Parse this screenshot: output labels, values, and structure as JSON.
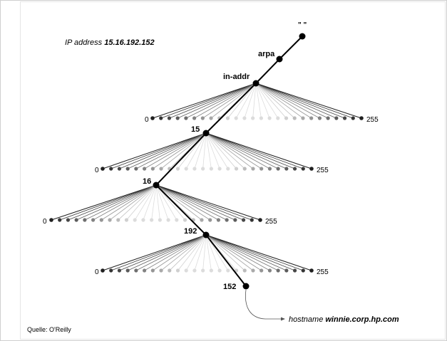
{
  "diagram": {
    "ip_caption": {
      "prefix": "IP address ",
      "value": "15.16.192.152"
    },
    "root_label": "\" \"",
    "nodes": {
      "arpa": "arpa",
      "in_addr": "in-addr",
      "n15": "15",
      "n16": "16",
      "n192": "192",
      "n152": "152"
    },
    "fan_min_label": "0",
    "fan_max_label": "255",
    "hostname": {
      "prefix": "hostname ",
      "value": "winnie.corp.hp.com"
    }
  },
  "credit": "Quelle: O'Reilly",
  "colors": {
    "ink": "#000000",
    "light_dot": "#dcdcdc",
    "mid_dot": "#909090",
    "frame": "#cfcfcf"
  }
}
